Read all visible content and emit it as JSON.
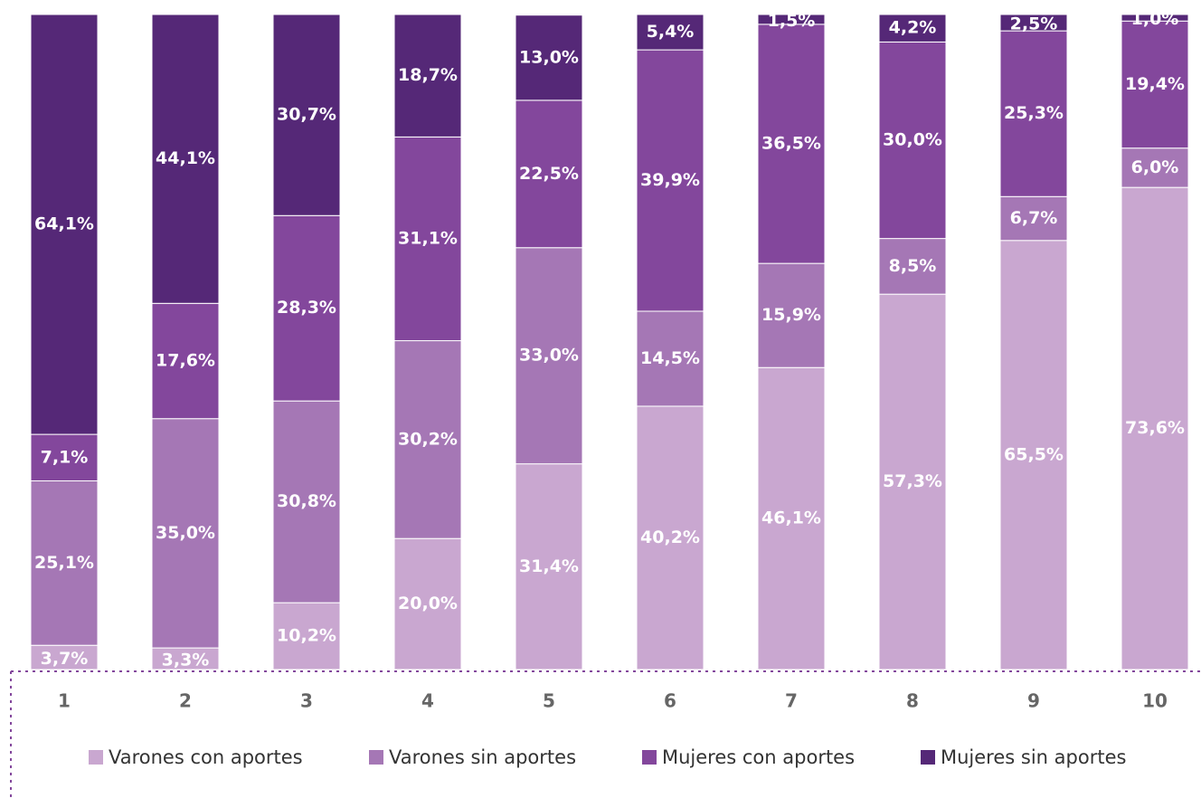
{
  "chart_data": {
    "type": "stacked_bar",
    "categories": [
      "1",
      "2",
      "3",
      "4",
      "5",
      "6",
      "7",
      "8",
      "9",
      "10"
    ],
    "ylim": [
      0,
      100
    ],
    "series": [
      {
        "name": "Varones con aportes",
        "color": "#c9a7d0",
        "values": [
          3.7,
          3.3,
          10.2,
          20.0,
          31.4,
          40.2,
          46.1,
          57.3,
          65.5,
          73.6
        ],
        "value_labels": [
          "3,7%",
          "3,3%",
          "10,2%",
          "20,0%",
          "31,4%",
          "40,2%",
          "46,1%",
          "57,3%",
          "65,5%",
          "73,6%"
        ]
      },
      {
        "name": "Varones sin aportes",
        "color": "#a577b5",
        "values": [
          25.1,
          35.0,
          30.8,
          30.2,
          33.0,
          14.5,
          15.9,
          8.5,
          6.7,
          6.0
        ],
        "value_labels": [
          "25,1%",
          "35,0%",
          "30,8%",
          "30,2%",
          "33,0%",
          "14,5%",
          "15,9%",
          "8,5%",
          "6,7%",
          "6,0%"
        ]
      },
      {
        "name": "Mujeres con aportes",
        "color": "#83479c",
        "values": [
          7.1,
          17.6,
          28.3,
          31.1,
          22.5,
          39.9,
          36.5,
          30.0,
          25.3,
          19.4
        ],
        "value_labels": [
          "7,1%",
          "17,6%",
          "28,3%",
          "31,1%",
          "22,5%",
          "39,9%",
          "36,5%",
          "30,0%",
          "25,3%",
          "19,4%"
        ]
      },
      {
        "name": "Mujeres sin aportes",
        "color": "#552877",
        "values": [
          64.1,
          44.1,
          30.7,
          18.7,
          13.0,
          5.4,
          1.5,
          4.2,
          2.5,
          1.0
        ],
        "value_labels": [
          "64,1%",
          "44,1%",
          "30,7%",
          "18,7%",
          "13,0%",
          "5,4%",
          "1,5%",
          "4,2%",
          "2,5%",
          "1,0%"
        ]
      }
    ]
  }
}
